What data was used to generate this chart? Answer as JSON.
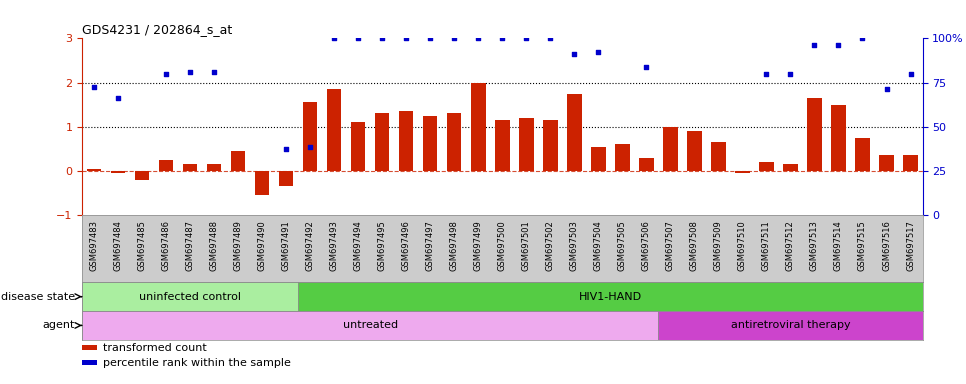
{
  "title": "GDS4231 / 202864_s_at",
  "samples": [
    "GSM697483",
    "GSM697484",
    "GSM697485",
    "GSM697486",
    "GSM697487",
    "GSM697488",
    "GSM697489",
    "GSM697490",
    "GSM697491",
    "GSM697492",
    "GSM697493",
    "GSM697494",
    "GSM697495",
    "GSM697496",
    "GSM697497",
    "GSM697498",
    "GSM697499",
    "GSM697500",
    "GSM697501",
    "GSM697502",
    "GSM697503",
    "GSM697504",
    "GSM697505",
    "GSM697506",
    "GSM697507",
    "GSM697508",
    "GSM697509",
    "GSM697510",
    "GSM697511",
    "GSM697512",
    "GSM697513",
    "GSM697514",
    "GSM697515",
    "GSM697516",
    "GSM697517"
  ],
  "bar_values": [
    0.05,
    -0.05,
    -0.2,
    0.25,
    0.15,
    0.15,
    0.45,
    -0.55,
    -0.35,
    1.55,
    1.85,
    1.1,
    1.3,
    1.35,
    1.25,
    1.3,
    2.0,
    1.15,
    1.2,
    1.15,
    1.75,
    0.55,
    0.6,
    0.3,
    1.0,
    0.9,
    0.65,
    -0.05,
    0.2,
    0.15,
    1.65,
    1.5,
    0.75,
    0.35,
    0.35
  ],
  "percentile_values_left_scale": [
    1.9,
    1.65,
    null,
    2.2,
    2.25,
    2.25,
    null,
    null,
    0.5,
    0.55,
    3.0,
    3.0,
    3.0,
    3.0,
    3.0,
    3.0,
    3.0,
    3.0,
    3.0,
    3.0,
    2.65,
    2.7,
    null,
    2.35,
    null,
    null,
    null,
    null,
    2.2,
    2.2,
    2.85,
    2.85,
    3.0,
    1.85,
    2.2
  ],
  "bar_color": "#cc2200",
  "dot_color": "#0000cc",
  "ylim": [
    -1,
    3
  ],
  "y2lim": [
    0,
    100
  ],
  "yticks_left": [
    -1,
    0,
    1,
    2,
    3
  ],
  "yticks_right": [
    0,
    25,
    50,
    75,
    100
  ],
  "ytick_labels_right": [
    "0",
    "25",
    "50",
    "75",
    "100%"
  ],
  "disease_state_groups": [
    {
      "label": "uninfected control",
      "start": 0,
      "end": 9,
      "color": "#aaeea0"
    },
    {
      "label": "HIV1-HAND",
      "start": 9,
      "end": 35,
      "color": "#55cc44"
    }
  ],
  "agent_groups": [
    {
      "label": "untreated",
      "start": 0,
      "end": 24,
      "color": "#eeaaee"
    },
    {
      "label": "antiretroviral therapy",
      "start": 24,
      "end": 35,
      "color": "#cc44cc"
    }
  ],
  "legend_items": [
    {
      "label": "transformed count",
      "color": "#cc2200"
    },
    {
      "label": "percentile rank within the sample",
      "color": "#0000cc"
    }
  ],
  "bg_color": "#ffffff",
  "xtick_bg_color": "#cccccc",
  "left_label_color": "#000000",
  "spine_left_color": "#cc2200",
  "spine_right_color": "#0000cc"
}
